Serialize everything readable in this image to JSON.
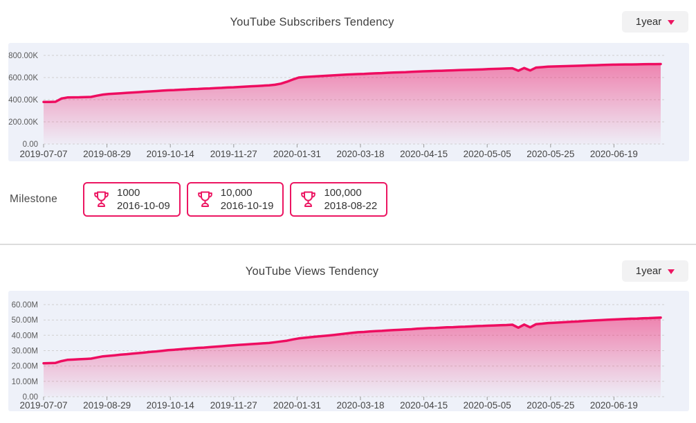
{
  "colors": {
    "accent": "#ec1561",
    "line": "#ee0d60",
    "card_background": "#eef1f9",
    "gridline": "#d0d0d0",
    "title_text": "#3f3f3f",
    "axis_text": "#555555",
    "dropdown_background": "#f2f2f3",
    "divider": "#dcdcdc"
  },
  "milestone": {
    "label": "Milestone",
    "items": [
      {
        "value": "1000",
        "date": "2016-10-09"
      },
      {
        "value": "10,000",
        "date": "2016-10-19"
      },
      {
        "value": "100,000",
        "date": "2018-08-22"
      }
    ]
  },
  "chart_data": [
    {
      "type": "area",
      "title": "YouTube Subscribers Tendency",
      "range_selector": "1year",
      "legend": "none",
      "grid": "dashed horizontal",
      "y_max": 800,
      "unit": "K",
      "y_ticks": [
        {
          "label": "800.00K",
          "value": 800
        },
        {
          "label": "600.00K",
          "value": 600
        },
        {
          "label": "400.00K",
          "value": 400
        },
        {
          "label": "200.00K",
          "value": 200
        },
        {
          "label": "0.00",
          "value": 0
        }
      ],
      "x_tick_labels": [
        "2019-07-07",
        "2019-08-29",
        "2019-10-14",
        "2019-11-27",
        "2020-01-31",
        "2020-03-18",
        "2020-04-15",
        "2020-05-05",
        "2020-05-25",
        "2020-06-19"
      ],
      "line_color": "#ee0d60",
      "values": [
        380,
        380,
        381,
        410,
        420,
        421,
        422,
        424,
        425,
        436,
        446,
        452,
        455,
        458,
        462,
        465,
        468,
        472,
        475,
        478,
        482,
        485,
        487,
        490,
        492,
        495,
        497,
        500,
        502,
        505,
        507,
        510,
        512,
        515,
        518,
        521,
        524,
        527,
        530,
        535,
        545,
        562,
        582,
        600,
        605,
        608,
        611,
        614,
        617,
        620,
        623,
        626,
        629,
        631,
        633,
        636,
        638,
        640,
        643,
        645,
        647,
        649,
        652,
        654,
        656,
        658,
        660,
        661,
        663,
        665,
        667,
        669,
        670,
        672,
        674,
        676,
        678,
        680,
        682,
        684,
        662,
        686,
        664,
        690,
        694,
        698,
        700,
        701,
        703,
        705,
        706,
        708,
        710,
        711,
        713,
        715,
        716,
        717,
        718,
        718,
        719,
        720,
        721,
        721,
        722
      ]
    },
    {
      "type": "area",
      "title": "YouTube Views Tendency",
      "range_selector": "1year",
      "legend": "none",
      "grid": "dashed horizontal",
      "y_max": 60,
      "unit": "M",
      "y_ticks": [
        {
          "label": "60.00M",
          "value": 60
        },
        {
          "label": "50.00M",
          "value": 50
        },
        {
          "label": "40.00M",
          "value": 40
        },
        {
          "label": "30.00M",
          "value": 30
        },
        {
          "label": "20.00M",
          "value": 20
        },
        {
          "label": "10.00M",
          "value": 10
        },
        {
          "label": "0.00",
          "value": 0
        }
      ],
      "x_tick_labels": [
        "2019-07-07",
        "2019-08-29",
        "2019-10-14",
        "2019-11-27",
        "2020-01-31",
        "2020-03-18",
        "2020-04-15",
        "2020-05-05",
        "2020-05-25",
        "2020-06-19"
      ],
      "line_color": "#ee0d60",
      "values": [
        21.8,
        21.9,
        22.0,
        23.2,
        24.0,
        24.2,
        24.4,
        24.6,
        24.8,
        25.6,
        26.3,
        26.6,
        27.0,
        27.4,
        27.7,
        28.1,
        28.4,
        28.8,
        29.2,
        29.5,
        29.9,
        30.3,
        30.6,
        30.9,
        31.2,
        31.5,
        31.8,
        32.0,
        32.3,
        32.6,
        32.9,
        33.2,
        33.5,
        33.8,
        34.0,
        34.3,
        34.5,
        34.8,
        35.0,
        35.5,
        36.0,
        36.5,
        37.3,
        38.0,
        38.4,
        38.8,
        39.2,
        39.5,
        39.9,
        40.3,
        40.7,
        41.2,
        41.6,
        42.0,
        42.2,
        42.5,
        42.7,
        42.9,
        43.2,
        43.4,
        43.6,
        43.8,
        44.0,
        44.3,
        44.5,
        44.7,
        44.8,
        45.0,
        45.2,
        45.3,
        45.5,
        45.6,
        45.8,
        46.0,
        46.1,
        46.3,
        46.4,
        46.6,
        46.7,
        46.9,
        45.0,
        47.0,
        45.2,
        47.3,
        47.6,
        48.0,
        48.2,
        48.4,
        48.6,
        48.8,
        49.0,
        49.3,
        49.5,
        49.7,
        49.9,
        50.1,
        50.3,
        50.5,
        50.6,
        50.8,
        50.9,
        51.1,
        51.2,
        51.4,
        51.5
      ]
    }
  ]
}
